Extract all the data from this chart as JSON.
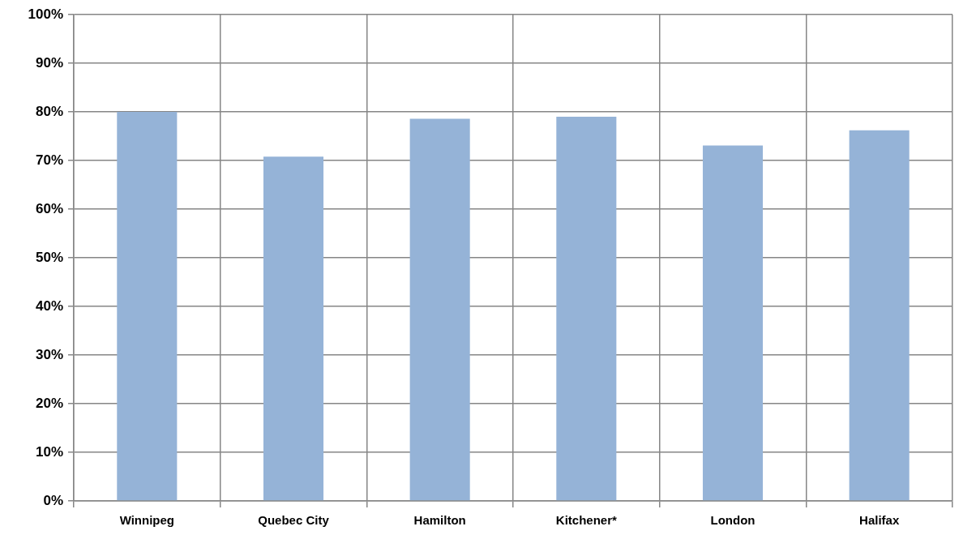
{
  "chart_data": {
    "type": "bar",
    "categories": [
      "Winnipeg",
      "Quebec City",
      "Hamilton",
      "Kitchener*",
      "London",
      "Halifax"
    ],
    "values": [
      80,
      70.8,
      78.6,
      79,
      73.1,
      76.2
    ],
    "color": "#95b3d7",
    "ylim": [
      0,
      100
    ],
    "yticks": [
      {
        "value": 0,
        "label": "0%"
      },
      {
        "value": 10,
        "label": "10%"
      },
      {
        "value": 20,
        "label": "20%"
      },
      {
        "value": 30,
        "label": "30%"
      },
      {
        "value": 40,
        "label": "40%"
      },
      {
        "value": 50,
        "label": "50%"
      },
      {
        "value": 60,
        "label": "60%"
      },
      {
        "value": 70,
        "label": "70%"
      },
      {
        "value": 80,
        "label": "80%"
      },
      {
        "value": 90,
        "label": "90%"
      },
      {
        "value": 100,
        "label": "100%"
      }
    ],
    "grid": true
  }
}
